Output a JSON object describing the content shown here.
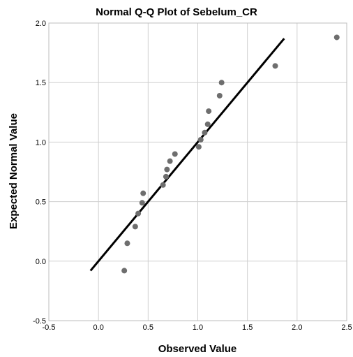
{
  "chart_data": {
    "type": "scatter",
    "title": "Normal Q-Q Plot of Sebelum_CR",
    "xlabel": "Observed Value",
    "ylabel": "Expected Normal Value",
    "xlim": [
      -0.5,
      2.5
    ],
    "ylim": [
      -0.5,
      2.0
    ],
    "xticks": [
      "-0.5",
      "0.0",
      "0.5",
      "1.0",
      "1.5",
      "2.0",
      "2.5"
    ],
    "yticks": [
      "-0.5",
      "0.0",
      "0.5",
      "1.0",
      "1.5",
      "2.0"
    ],
    "grid": true,
    "points": [
      {
        "x": 0.26,
        "y": -0.08
      },
      {
        "x": 0.29,
        "y": 0.15
      },
      {
        "x": 0.37,
        "y": 0.29
      },
      {
        "x": 0.4,
        "y": 0.4
      },
      {
        "x": 0.44,
        "y": 0.49
      },
      {
        "x": 0.45,
        "y": 0.57
      },
      {
        "x": 0.65,
        "y": 0.64
      },
      {
        "x": 0.68,
        "y": 0.71
      },
      {
        "x": 0.69,
        "y": 0.77
      },
      {
        "x": 0.72,
        "y": 0.84
      },
      {
        "x": 0.77,
        "y": 0.9
      },
      {
        "x": 1.01,
        "y": 0.96
      },
      {
        "x": 1.03,
        "y": 1.02
      },
      {
        "x": 1.07,
        "y": 1.08
      },
      {
        "x": 1.1,
        "y": 1.15
      },
      {
        "x": 1.11,
        "y": 1.26
      },
      {
        "x": 1.22,
        "y": 1.39
      },
      {
        "x": 1.24,
        "y": 1.5
      },
      {
        "x": 1.78,
        "y": 1.64
      },
      {
        "x": 2.4,
        "y": 1.88
      }
    ],
    "reference_line": {
      "x": [
        -0.08,
        1.87
      ],
      "y": [
        -0.08,
        1.87
      ]
    }
  }
}
